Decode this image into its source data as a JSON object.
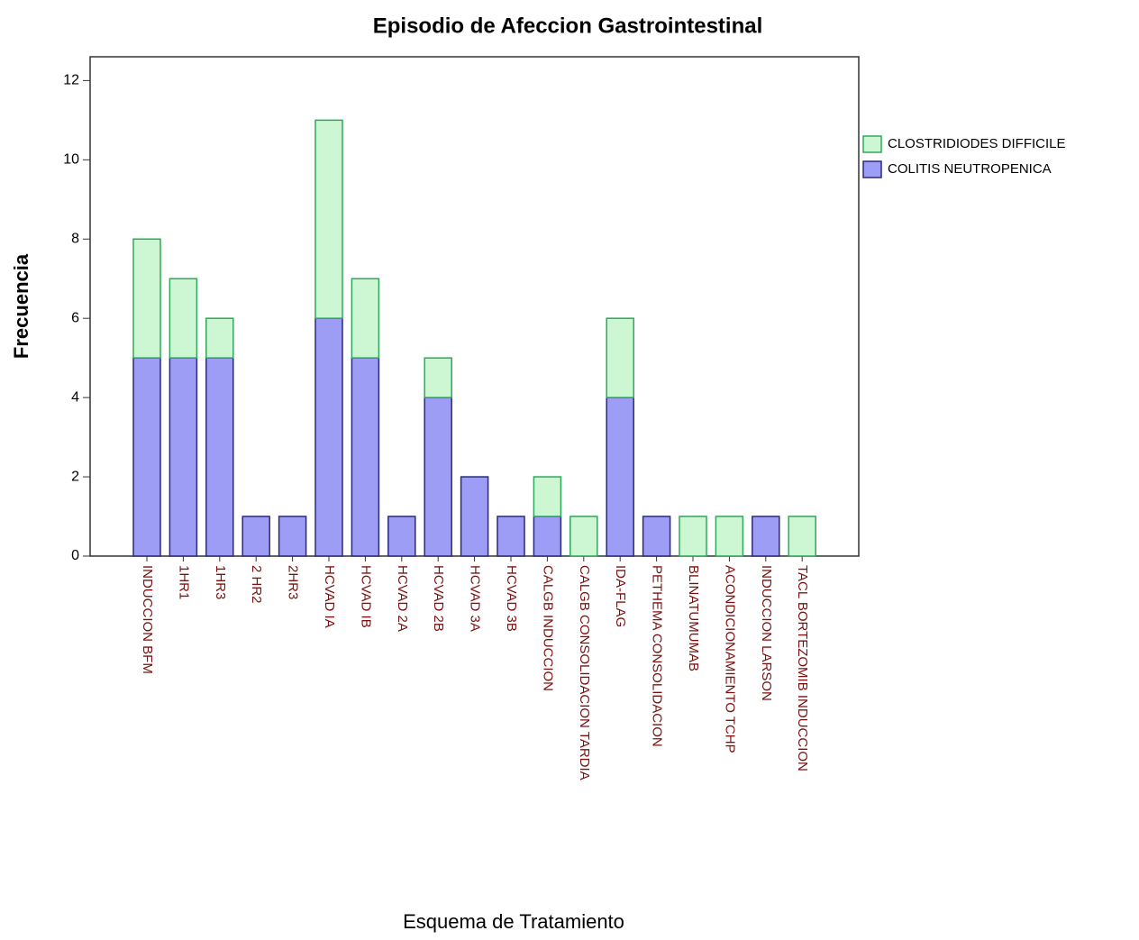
{
  "chart_data": {
    "type": "stacked_bar",
    "title": "Episodio de Afeccion Gastrointestinal",
    "x_label": "Esquema de Tratamiento",
    "y_label": "Frecuencia",
    "categories": [
      "INDUCCION BFM",
      "1HR1",
      "1HR3",
      "2 HR2",
      "2HR3",
      "HCVAD IA",
      "HCVAD IB",
      "HCVAD 2A",
      "HCVAD 2B",
      "HCVAD 3A",
      "HCVAD 3B",
      "CALGB INDUCCION",
      "CALGB CONSOLIDACION TARDIA",
      "IDA-FLAG",
      "PETHEMA CONSOLIDACION",
      "BLINATUMUMAB",
      "ACONDICIONAMIENTO TCHP",
      "INDUCCION LARSON",
      "TACL BORTEZOMIB INDUCCION"
    ],
    "series": [
      {
        "name": "COLITIS NEUTROPENICA",
        "color": "#9d9df5",
        "values": [
          5,
          5,
          5,
          1,
          1,
          6,
          5,
          1,
          4,
          2,
          1,
          1,
          0,
          4,
          1,
          0,
          0,
          1,
          0
        ]
      },
      {
        "name": "CLOSTRIDIODES DIFFICILE",
        "color": "#ccf7d2",
        "values": [
          3,
          2,
          1,
          0,
          0,
          5,
          2,
          0,
          1,
          0,
          0,
          1,
          1,
          2,
          0,
          1,
          1,
          0,
          1
        ]
      }
    ],
    "ylim": [
      0,
      12.6
    ],
    "yticks": [
      0,
      2,
      4,
      6,
      8,
      10,
      12
    ],
    "grid": false,
    "legend": "right"
  }
}
